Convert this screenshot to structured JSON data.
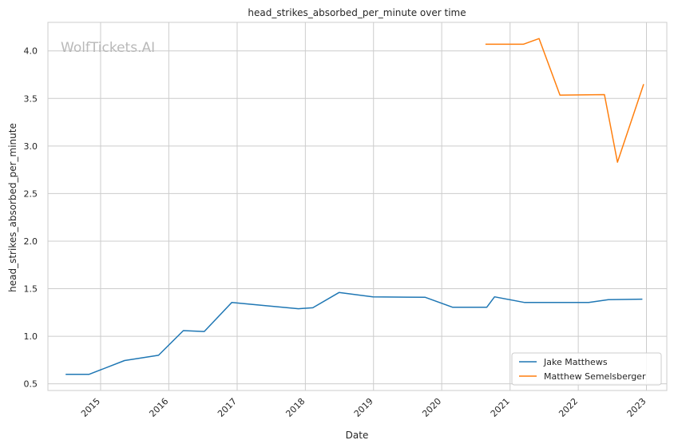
{
  "chart_data": {
    "type": "line",
    "title": "head_strikes_absorbed_per_minute over time",
    "xlabel": "Date",
    "ylabel": "head_strikes_absorbed_per_minute",
    "watermark": "WolfTickets.AI",
    "x_ticks": [
      "2015",
      "2016",
      "2017",
      "2018",
      "2019",
      "2020",
      "2021",
      "2022",
      "2023"
    ],
    "y_ticks": [
      "0.5",
      "1.0",
      "1.5",
      "2.0",
      "2.5",
      "3.0",
      "3.5",
      "4.0"
    ],
    "xlim": [
      "2014-03-25",
      "2023-04-20"
    ],
    "ylim": [
      0.43,
      4.3
    ],
    "grid": true,
    "legend_position": "lower-right",
    "series": [
      {
        "name": "Jake Matthews",
        "color": "#1f77b4",
        "points": [
          [
            "2014-06-28",
            0.6
          ],
          [
            "2014-11-01",
            0.6
          ],
          [
            "2015-05-09",
            0.745
          ],
          [
            "2015-11-07",
            0.8
          ],
          [
            "2016-03-19",
            1.06
          ],
          [
            "2016-07-09",
            1.05
          ],
          [
            "2016-12-03",
            1.355
          ],
          [
            "2017-11-25",
            1.29
          ],
          [
            "2018-02-10",
            1.3
          ],
          [
            "2018-06-30",
            1.46
          ],
          [
            "2018-12-29",
            1.415
          ],
          [
            "2019-10-05",
            1.41
          ],
          [
            "2020-02-29",
            1.305
          ],
          [
            "2020-08-29",
            1.305
          ],
          [
            "2020-10-10",
            1.415
          ],
          [
            "2021-03-20",
            1.355
          ],
          [
            "2022-02-26",
            1.355
          ],
          [
            "2022-06-11",
            1.385
          ],
          [
            "2022-12-10",
            1.39
          ]
        ]
      },
      {
        "name": "Matthew Semelsberger",
        "color": "#ff7f0e",
        "points": [
          [
            "2020-08-22",
            4.07
          ],
          [
            "2021-03-13",
            4.07
          ],
          [
            "2021-06-05",
            4.13
          ],
          [
            "2021-09-25",
            3.535
          ],
          [
            "2022-05-21",
            3.54
          ],
          [
            "2022-07-30",
            2.83
          ],
          [
            "2022-12-17",
            3.65
          ]
        ]
      }
    ]
  }
}
